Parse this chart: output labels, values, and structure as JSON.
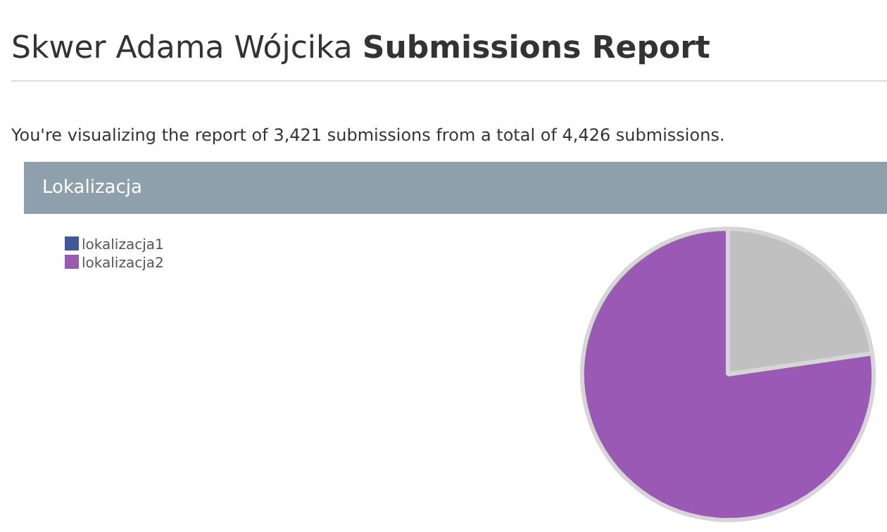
{
  "chart_data": {
    "type": "pie",
    "title": "Lokalizacja",
    "annotations": [
      "Skwer Adama Wójcika Submissions Report",
      "You're visualizing the report of 3,421 submissions from a total of 4,426 submissions."
    ],
    "categories": [
      "lokalizacja1",
      null,
      "lokalizacja2"
    ],
    "values": [
      0,
      22.7,
      77.3
    ],
    "colors": [
      "#3f5a9b",
      "#c0c0c0",
      "#9b59b6"
    ],
    "legend": "top left"
  }
}
